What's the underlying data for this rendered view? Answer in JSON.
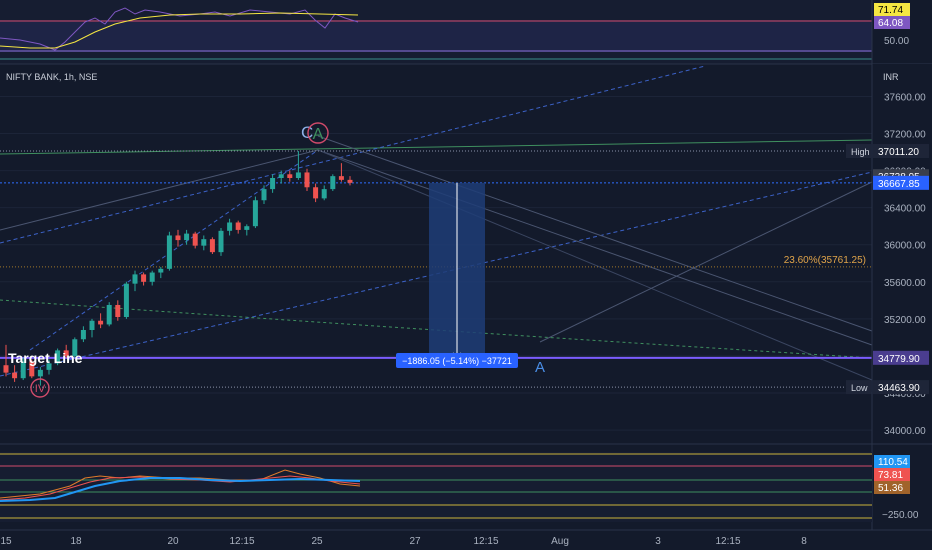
{
  "symbol": "NIFTY BANK, 1h, NSE",
  "currency": "INR",
  "colors": {
    "bg": "#131a2b",
    "up": "#26a69a",
    "down": "#ef5350",
    "grid": "#263047",
    "axis_text": "#aab2c0",
    "target": "#7b5cff",
    "fib": "#e0a44a",
    "measure": "#2962ff"
  },
  "top_panel": {
    "levels": [
      {
        "label": "71.74",
        "color": "#f5e642",
        "text_color": "#000000"
      },
      {
        "label": "64.08",
        "color": "#7e57c2",
        "text_color": "#ffffff"
      }
    ],
    "ticks": [
      "50.00"
    ]
  },
  "price_axis_ticks": [
    "37600.00",
    "37200.00",
    "36800.00",
    "36400.00",
    "36000.00",
    "35600.00",
    "35200.00",
    "34800.00",
    "34400.00",
    "34000.00"
  ],
  "price_tags": {
    "high": {
      "label": "High",
      "value": "37011.20"
    },
    "current1": {
      "value": "36738.95"
    },
    "current2": {
      "value": "36667.85"
    },
    "target": {
      "value": "34779.90"
    },
    "low": {
      "label": "Low",
      "value": "34463.90"
    }
  },
  "annotations": {
    "target_line": "Target Line",
    "wave_iv": "IV",
    "wave_a_circle": "A",
    "wave_c": "C",
    "wave_a_blue": "A",
    "fib_label": "23.60%(35761.25)",
    "measure_label": "−1886.05 (−5.14%) −37721"
  },
  "x_axis_labels": [
    "15",
    "18",
    "20",
    "12:15",
    "25",
    "27",
    "12:15",
    "Aug",
    "3",
    "12:15",
    "8"
  ],
  "bottom_panel": {
    "levels": [
      {
        "label": "110.54",
        "color": "#2196f3"
      },
      {
        "label": "73.81",
        "color": "#ef5350"
      },
      {
        "label": "51.36",
        "color": "#a0632a"
      }
    ],
    "ticks": [
      "−250.00"
    ]
  },
  "chart_data": {
    "type": "candlestick",
    "symbol": "NIFTY BANK",
    "interval": "1h",
    "exchange": "NSE",
    "y_range": [
      33850,
      37950
    ],
    "candles": [
      {
        "o": 34700,
        "h": 34920,
        "l": 34580,
        "c": 34620
      },
      {
        "o": 34620,
        "h": 34700,
        "l": 34520,
        "c": 34560
      },
      {
        "o": 34560,
        "h": 34780,
        "l": 34540,
        "c": 34740
      },
      {
        "o": 34740,
        "h": 34760,
        "l": 34560,
        "c": 34580
      },
      {
        "o": 34580,
        "h": 34680,
        "l": 34480,
        "c": 34650
      },
      {
        "o": 34650,
        "h": 34760,
        "l": 34600,
        "c": 34720
      },
      {
        "o": 34720,
        "h": 34880,
        "l": 34700,
        "c": 34860
      },
      {
        "o": 34860,
        "h": 34920,
        "l": 34780,
        "c": 34800
      },
      {
        "o": 34800,
        "h": 35000,
        "l": 34780,
        "c": 34980
      },
      {
        "o": 34980,
        "h": 35120,
        "l": 34950,
        "c": 35080
      },
      {
        "o": 35080,
        "h": 35200,
        "l": 35000,
        "c": 35180
      },
      {
        "o": 35180,
        "h": 35260,
        "l": 35100,
        "c": 35140
      },
      {
        "o": 35140,
        "h": 35380,
        "l": 35120,
        "c": 35350
      },
      {
        "o": 35350,
        "h": 35400,
        "l": 35180,
        "c": 35220
      },
      {
        "o": 35220,
        "h": 35600,
        "l": 35200,
        "c": 35580
      },
      {
        "o": 35580,
        "h": 35720,
        "l": 35500,
        "c": 35680
      },
      {
        "o": 35680,
        "h": 35700,
        "l": 35560,
        "c": 35600
      },
      {
        "o": 35600,
        "h": 35720,
        "l": 35560,
        "c": 35700
      },
      {
        "o": 35700,
        "h": 35760,
        "l": 35640,
        "c": 35740
      },
      {
        "o": 35740,
        "h": 36140,
        "l": 35720,
        "c": 36100
      },
      {
        "o": 36100,
        "h": 36160,
        "l": 35980,
        "c": 36050
      },
      {
        "o": 36050,
        "h": 36160,
        "l": 36000,
        "c": 36120
      },
      {
        "o": 36120,
        "h": 36140,
        "l": 35960,
        "c": 35990
      },
      {
        "o": 35990,
        "h": 36100,
        "l": 35940,
        "c": 36060
      },
      {
        "o": 36060,
        "h": 36080,
        "l": 35900,
        "c": 35920
      },
      {
        "o": 35920,
        "h": 36180,
        "l": 35880,
        "c": 36150
      },
      {
        "o": 36150,
        "h": 36280,
        "l": 36100,
        "c": 36240
      },
      {
        "o": 36240,
        "h": 36260,
        "l": 36120,
        "c": 36160
      },
      {
        "o": 36160,
        "h": 36220,
        "l": 36100,
        "c": 36200
      },
      {
        "o": 36200,
        "h": 36520,
        "l": 36180,
        "c": 36480
      },
      {
        "o": 36480,
        "h": 36640,
        "l": 36440,
        "c": 36600
      },
      {
        "o": 36600,
        "h": 36760,
        "l": 36560,
        "c": 36720
      },
      {
        "o": 36720,
        "h": 36800,
        "l": 36660,
        "c": 36760
      },
      {
        "o": 36760,
        "h": 36800,
        "l": 36680,
        "c": 36720
      },
      {
        "o": 36720,
        "h": 37011,
        "l": 36700,
        "c": 36780
      },
      {
        "o": 36780,
        "h": 36820,
        "l": 36580,
        "c": 36620
      },
      {
        "o": 36620,
        "h": 36660,
        "l": 36460,
        "c": 36500
      },
      {
        "o": 36500,
        "h": 36640,
        "l": 36480,
        "c": 36600
      },
      {
        "o": 36600,
        "h": 36760,
        "l": 36580,
        "c": 36740
      },
      {
        "o": 36740,
        "h": 36880,
        "l": 36680,
        "c": 36700
      },
      {
        "o": 36700,
        "h": 36740,
        "l": 36640,
        "c": 36668
      }
    ]
  }
}
